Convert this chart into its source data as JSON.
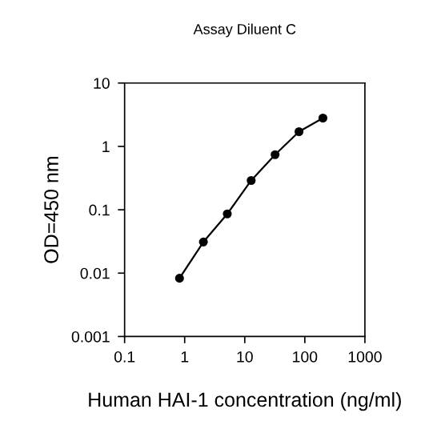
{
  "chart_data": {
    "type": "line",
    "title": "Assay Diluent C",
    "xlabel": "Human HAI-1 concentration (ng/ml)",
    "ylabel": "OD=450 nm",
    "log": "xy",
    "x": [
      0.82,
      2.05,
      5.12,
      12.8,
      32,
      80,
      200
    ],
    "series": [
      {
        "color": "#000000",
        "values": [
          0.0083,
          0.031,
          0.086,
          0.29,
          0.74,
          1.71,
          2.8
        ]
      }
    ],
    "xlim": [
      0.1,
      1000
    ],
    "xticks": [
      0.1,
      1,
      10,
      100,
      1000
    ],
    "ylim": [
      0.001,
      10
    ],
    "yticks": [
      0.001,
      0.01,
      0.1,
      1,
      10
    ],
    "marker": "circle",
    "line_style": "solid",
    "grid": false,
    "legend": false
  }
}
